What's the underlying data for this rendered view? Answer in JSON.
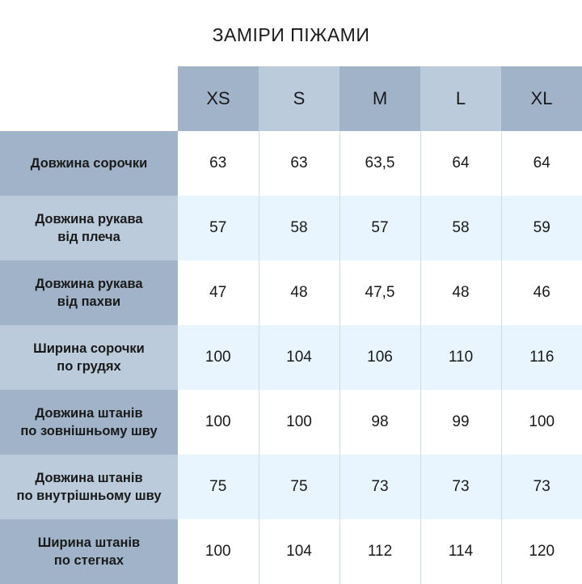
{
  "title": "ЗАМІРИ ПІЖАМИ",
  "sizes": [
    "XS",
    "S",
    "M",
    "L",
    "XL"
  ],
  "rows": [
    {
      "label1": "Довжина сорочки",
      "label2": "",
      "values": [
        "63",
        "63",
        "63,5",
        "64",
        "64"
      ]
    },
    {
      "label1": "Довжина рукава",
      "label2": "від плеча",
      "values": [
        "57",
        "58",
        "57",
        "58",
        "59"
      ]
    },
    {
      "label1": "Довжина рукава",
      "label2": "від пахви",
      "values": [
        "47",
        "48",
        "47,5",
        "48",
        "46"
      ]
    },
    {
      "label1": "Ширина сорочки",
      "label2": "по грудях",
      "values": [
        "100",
        "104",
        "106",
        "110",
        "116"
      ]
    },
    {
      "label1": "Довжина штанів",
      "label2": "по зовнішньому шву",
      "values": [
        "100",
        "100",
        "98",
        "99",
        "100"
      ]
    },
    {
      "label1": "Довжина штанів",
      "label2": "по внутрішньому шву",
      "values": [
        "75",
        "75",
        "73",
        "73",
        "73"
      ]
    },
    {
      "label1": "Ширина штанів",
      "label2": "по стегнах",
      "values": [
        "100",
        "104",
        "112",
        "114",
        "120"
      ]
    }
  ],
  "colors": {
    "header_dark": "#a1b3c9",
    "header_light": "#bccbdc",
    "row_alt": "#e8f4fe"
  }
}
